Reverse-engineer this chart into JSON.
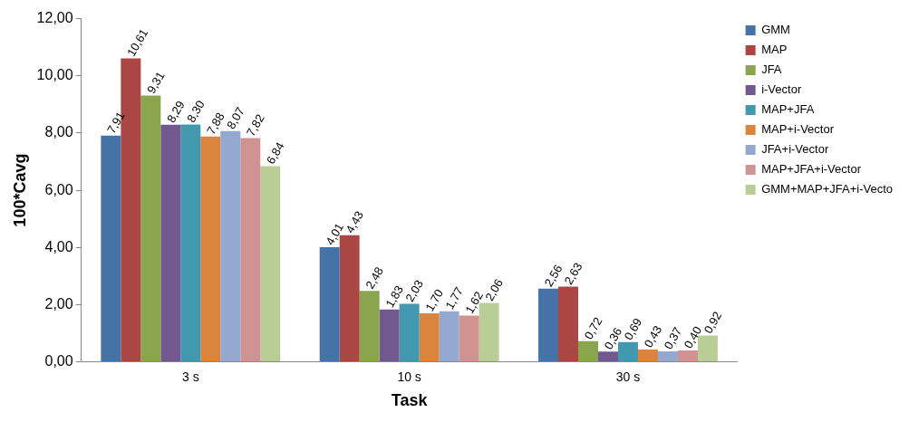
{
  "chart_data": {
    "type": "bar",
    "xlabel": "Task",
    "ylabel": "100*Cavg",
    "categories": [
      "3 s",
      "10 s",
      "30 s"
    ],
    "series": [
      {
        "name": "GMM",
        "color": "#4572a7",
        "values": [
          7.91,
          4.01,
          2.56
        ],
        "value_labels": [
          "7,91",
          "4,01",
          "2,56"
        ]
      },
      {
        "name": "MAP",
        "color": "#aa4643",
        "values": [
          10.61,
          4.43,
          2.63
        ],
        "value_labels": [
          "10,61",
          "4,43",
          "2,63"
        ]
      },
      {
        "name": "JFA",
        "color": "#89a54e",
        "values": [
          9.31,
          2.48,
          0.72
        ],
        "value_labels": [
          "9,31",
          "2,48",
          "0,72"
        ]
      },
      {
        "name": "i-Vector",
        "color": "#71588f",
        "values": [
          8.29,
          1.83,
          0.36
        ],
        "value_labels": [
          "8,29",
          "1,83",
          "0,36"
        ]
      },
      {
        "name": "MAP+JFA",
        "color": "#4198af",
        "values": [
          8.3,
          2.03,
          0.69
        ],
        "value_labels": [
          "8,30",
          "2,03",
          "0,69"
        ]
      },
      {
        "name": "MAP+i-Vector",
        "color": "#db843d",
        "values": [
          7.88,
          1.7,
          0.43
        ],
        "value_labels": [
          "7,88",
          "1,70",
          "0,43"
        ]
      },
      {
        "name": "JFA+i-Vector",
        "color": "#93a9cf",
        "values": [
          8.07,
          1.77,
          0.37
        ],
        "value_labels": [
          "8,07",
          "1,77",
          "0,37"
        ]
      },
      {
        "name": "MAP+JFA+i-Vector",
        "color": "#d19392",
        "values": [
          7.82,
          1.62,
          0.4
        ],
        "value_labels": [
          "7,82",
          "1,62",
          "0,40"
        ]
      },
      {
        "name": "GMM+MAP+JFA+i-Vecto",
        "color": "#b9cd96",
        "values": [
          6.84,
          2.06,
          0.92
        ],
        "value_labels": [
          "6,84",
          "2,06",
          "0,92"
        ]
      }
    ],
    "ylim": [
      0,
      12
    ],
    "yticks": [
      {
        "value": 0,
        "label": "0,00"
      },
      {
        "value": 2,
        "label": "2,00"
      },
      {
        "value": 4,
        "label": "4,00"
      },
      {
        "value": 6,
        "label": "6,00"
      },
      {
        "value": 8,
        "label": "8,00"
      },
      {
        "value": 10,
        "label": "10,00"
      },
      {
        "value": 12,
        "label": "12,00"
      }
    ],
    "grid": false,
    "legend": "top right"
  }
}
